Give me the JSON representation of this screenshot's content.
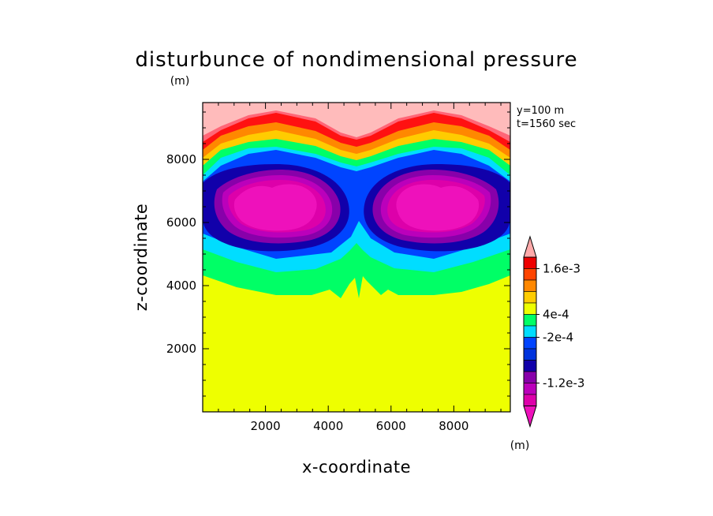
{
  "chart_data": {
    "type": "heatmap",
    "subtype": "filled-contour",
    "title": "disturbunce of nondimensional pressure",
    "xlabel": "x-coordinate",
    "ylabel": "z-coordinate",
    "xunit": "(m)",
    "yunit": "(m)",
    "annotation_lines": [
      "y=100 m",
      "t=1560 sec"
    ],
    "xlim": [
      0,
      9800
    ],
    "ylim": [
      0,
      9800
    ],
    "xticks": [
      2000,
      4000,
      6000,
      8000
    ],
    "yticks": [
      2000,
      4000,
      6000,
      8000
    ],
    "xtick_labels": [
      "2000",
      "4000",
      "6000",
      "8000"
    ],
    "ytick_labels": [
      "2000",
      "4000",
      "6000",
      "8000"
    ],
    "grid": false,
    "colorbar": {
      "position": "right",
      "extend": "both",
      "levels": [
        -0.0018,
        -0.0016,
        -0.0014,
        -0.0012,
        -0.001,
        -0.0008,
        -0.0006,
        -0.0004,
        -0.0002,
        0,
        0.0004,
        0.0008,
        0.0012,
        0.0016,
        0.002
      ],
      "colors": [
        "#ee11bb",
        "#dd00aa",
        "#bb00bb",
        "#8800aa",
        "#1100aa",
        "#0033dd",
        "#0044ff",
        "#00ddff",
        "#00ff66",
        "#eeff00",
        "#ffcc00",
        "#ff8800",
        "#ff4400",
        "#ee0000",
        "#ffaaaa"
      ],
      "tick_labels": [
        "1.6e-3",
        "4e-4",
        "-2e-4",
        "-1.2e-3"
      ]
    },
    "bands": [
      {
        "color": "#ffbbbb",
        "z_from": 8650,
        "z_to": 9800
      },
      {
        "color": "#ff6677",
        "z_from": 8450,
        "z_to": 8650
      },
      {
        "color": "#ff1111",
        "z_from": 8200,
        "z_to": 8450
      },
      {
        "color": "#ff8800",
        "z_from": 8050,
        "z_to": 8200
      },
      {
        "color": "#ffcc00",
        "z_from": 7900,
        "z_to": 8050
      },
      {
        "color": "#00ff66",
        "z_from": 7780,
        "z_to": 7900
      },
      {
        "color": "#00ddff",
        "z_from": 7650,
        "z_to": 7780
      },
      {
        "color": "#0044ff",
        "z_from": 5200,
        "z_to": 7650
      },
      {
        "color": "#00ddff",
        "z_from": 4800,
        "z_to": 5200
      },
      {
        "color": "#00ff66",
        "z_from": 3800,
        "z_to": 4800
      },
      {
        "color": "#eeff00",
        "z_from": 0,
        "z_to": 3800
      }
    ],
    "vortices": [
      {
        "x_center": 2450,
        "z_center": 6650,
        "min_value": -0.0018
      },
      {
        "x_center": 7550,
        "z_center": 6650,
        "min_value": -0.0018
      }
    ]
  }
}
